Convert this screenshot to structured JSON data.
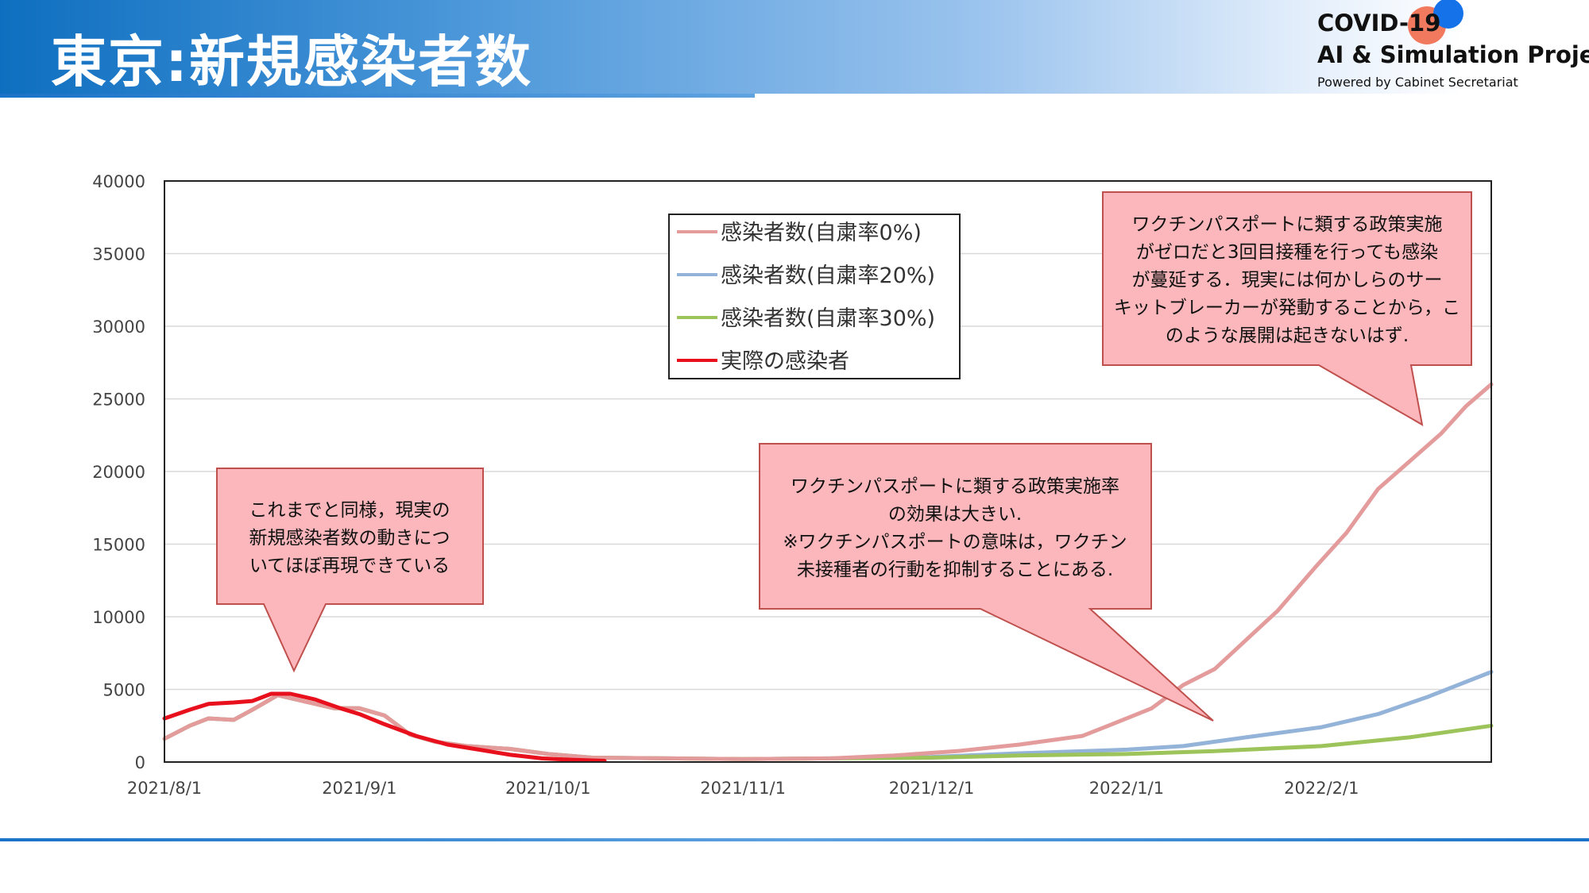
{
  "header": {
    "title": "東京:新規感染者数",
    "logo_line1": "COVID-19",
    "logo_line2": "AI & Simulation Project",
    "logo_line3": "Powered by Cabinet Secretariat"
  },
  "colors": {
    "header_blue": "#0e6fc0",
    "series_0pct": "#e49b9b",
    "series_20pct": "#94b3d9",
    "series_30pct": "#9cc45a",
    "actual": "#e8101c",
    "callout_fill": "#fbb7bb"
  },
  "chart_data": {
    "type": "line",
    "title": "",
    "xlabel": "",
    "ylabel": "",
    "ylim": [
      0,
      40000
    ],
    "yticks": [
      0,
      5000,
      10000,
      15000,
      20000,
      25000,
      30000,
      35000,
      40000
    ],
    "xlim": [
      "2021-08-01",
      "2022-02-28"
    ],
    "xticks": [
      "2021-08-01",
      "2021-09-01",
      "2021-10-01",
      "2021-11-01",
      "2021-12-01",
      "2022-01-01",
      "2022-02-01"
    ],
    "xtick_labels": [
      "2021/8/1",
      "2021/9/1",
      "2021/10/1",
      "2021/11/1",
      "2021/12/1",
      "2022/1/1",
      "2022/2/1"
    ],
    "grid": "horizontal",
    "legend_position": "top-center",
    "series": [
      {
        "name": "感染者数(自粛率0%)",
        "color": "#e49b9b",
        "points": [
          [
            "2021-08-01",
            1600
          ],
          [
            "2021-08-05",
            2500
          ],
          [
            "2021-08-08",
            3000
          ],
          [
            "2021-08-12",
            2900
          ],
          [
            "2021-08-15",
            3600
          ],
          [
            "2021-08-19",
            4600
          ],
          [
            "2021-08-24",
            4100
          ],
          [
            "2021-08-28",
            3700
          ],
          [
            "2021-09-01",
            3700
          ],
          [
            "2021-09-05",
            3200
          ],
          [
            "2021-09-09",
            1900
          ],
          [
            "2021-09-13",
            1400
          ],
          [
            "2021-09-18",
            1100
          ],
          [
            "2021-09-25",
            900
          ],
          [
            "2021-10-01",
            550
          ],
          [
            "2021-10-08",
            300
          ],
          [
            "2021-10-20",
            250
          ],
          [
            "2021-11-01",
            200
          ],
          [
            "2021-11-15",
            250
          ],
          [
            "2021-11-25",
            450
          ],
          [
            "2021-12-05",
            750
          ],
          [
            "2021-12-15",
            1200
          ],
          [
            "2021-12-25",
            1800
          ],
          [
            "2022-01-01",
            3000
          ],
          [
            "2022-01-05",
            3700
          ],
          [
            "2022-01-10",
            5300
          ],
          [
            "2022-01-15",
            6400
          ],
          [
            "2022-01-20",
            8400
          ],
          [
            "2022-01-25",
            10400
          ],
          [
            "2022-01-31",
            13400
          ],
          [
            "2022-02-05",
            15800
          ],
          [
            "2022-02-10",
            18800
          ],
          [
            "2022-02-15",
            20700
          ],
          [
            "2022-02-20",
            22600
          ],
          [
            "2022-02-24",
            24500
          ],
          [
            "2022-02-28",
            26000
          ]
        ]
      },
      {
        "name": "感染者数(自粛率20%)",
        "color": "#94b3d9",
        "points": [
          [
            "2021-08-01",
            1600
          ],
          [
            "2021-08-05",
            2500
          ],
          [
            "2021-08-08",
            3000
          ],
          [
            "2021-08-12",
            2900
          ],
          [
            "2021-08-15",
            3600
          ],
          [
            "2021-08-19",
            4600
          ],
          [
            "2021-08-24",
            4100
          ],
          [
            "2021-08-28",
            3700
          ],
          [
            "2021-09-01",
            3700
          ],
          [
            "2021-09-05",
            3200
          ],
          [
            "2021-09-09",
            1900
          ],
          [
            "2021-09-13",
            1400
          ],
          [
            "2021-09-18",
            1100
          ],
          [
            "2021-09-25",
            900
          ],
          [
            "2021-10-01",
            550
          ],
          [
            "2021-10-08",
            300
          ],
          [
            "2021-10-20",
            250
          ],
          [
            "2021-11-01",
            200
          ],
          [
            "2021-11-15",
            250
          ],
          [
            "2021-12-01",
            350
          ],
          [
            "2021-12-15",
            600
          ],
          [
            "2022-01-01",
            850
          ],
          [
            "2022-01-10",
            1100
          ],
          [
            "2022-01-20",
            1700
          ],
          [
            "2022-02-01",
            2400
          ],
          [
            "2022-02-10",
            3300
          ],
          [
            "2022-02-18",
            4500
          ],
          [
            "2022-02-28",
            6200
          ]
        ]
      },
      {
        "name": "感染者数(自粛率30%)",
        "color": "#9cc45a",
        "points": [
          [
            "2021-08-01",
            1600
          ],
          [
            "2021-08-05",
            2500
          ],
          [
            "2021-08-08",
            3000
          ],
          [
            "2021-08-12",
            2900
          ],
          [
            "2021-08-15",
            3600
          ],
          [
            "2021-08-19",
            4600
          ],
          [
            "2021-08-24",
            4100
          ],
          [
            "2021-08-28",
            3700
          ],
          [
            "2021-09-01",
            3700
          ],
          [
            "2021-09-05",
            3200
          ],
          [
            "2021-09-09",
            1900
          ],
          [
            "2021-09-13",
            1400
          ],
          [
            "2021-09-18",
            1100
          ],
          [
            "2021-09-25",
            900
          ],
          [
            "2021-10-01",
            550
          ],
          [
            "2021-10-08",
            300
          ],
          [
            "2021-10-20",
            250
          ],
          [
            "2021-11-01",
            200
          ],
          [
            "2021-11-15",
            250
          ],
          [
            "2021-12-01",
            300
          ],
          [
            "2021-12-15",
            450
          ],
          [
            "2022-01-01",
            550
          ],
          [
            "2022-01-15",
            750
          ],
          [
            "2022-02-01",
            1100
          ],
          [
            "2022-02-15",
            1700
          ],
          [
            "2022-02-28",
            2500
          ]
        ]
      },
      {
        "name": "実際の感染者",
        "color": "#e8101c",
        "points": [
          [
            "2021-08-01",
            3000
          ],
          [
            "2021-08-05",
            3600
          ],
          [
            "2021-08-08",
            4000
          ],
          [
            "2021-08-12",
            4100
          ],
          [
            "2021-08-15",
            4200
          ],
          [
            "2021-08-18",
            4700
          ],
          [
            "2021-08-21",
            4700
          ],
          [
            "2021-08-25",
            4300
          ],
          [
            "2021-08-29",
            3700
          ],
          [
            "2021-09-01",
            3300
          ],
          [
            "2021-09-05",
            2600
          ],
          [
            "2021-09-10",
            1800
          ],
          [
            "2021-09-15",
            1200
          ],
          [
            "2021-09-20",
            850
          ],
          [
            "2021-09-25",
            500
          ],
          [
            "2021-09-30",
            250
          ],
          [
            "2021-10-05",
            150
          ],
          [
            "2021-10-10",
            80
          ]
        ]
      }
    ],
    "annotations": [
      {
        "lines": [
          "これまでと同様，現実の",
          "新規感染者数の動きにつ",
          "いてほぼ再現できている"
        ]
      },
      {
        "lines": [
          "ワクチンパスポートに類する政策実施率",
          "の効果は大きい.",
          "※ワクチンパスポートの意味は，ワクチン",
          "未接種者の行動を抑制することにある."
        ]
      },
      {
        "lines": [
          "ワクチンパスポートに類する政策実施",
          "がゼロだと3回目接種を行っても感染",
          "が蔓延する．現実には何かしらのサー",
          "キットブレーカーが発動することから，こ",
          "のような展開は起きないはず."
        ]
      }
    ]
  }
}
